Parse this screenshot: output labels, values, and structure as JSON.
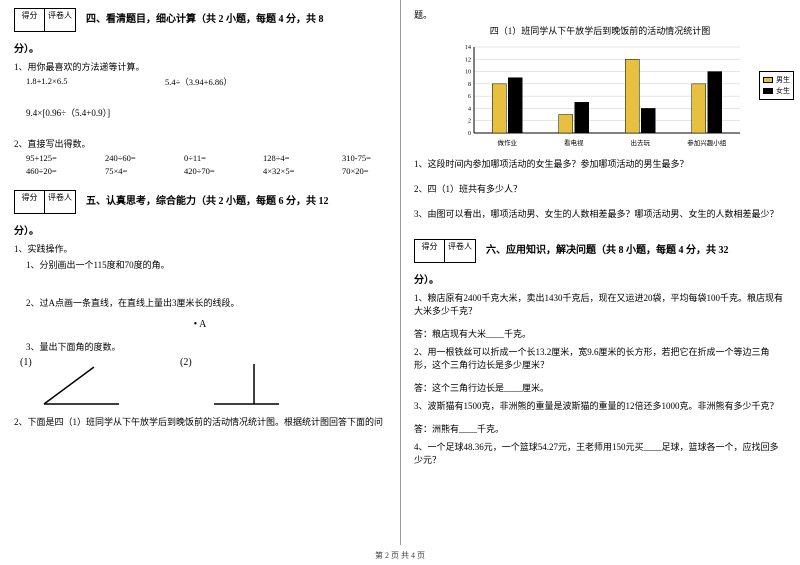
{
  "scorebox": {
    "score": "得分",
    "judge": "评卷人"
  },
  "sec4": {
    "title": "四、看清题目，细心计算（共 2 小题，每题 4 分，共 8",
    "cont": "分）。",
    "q1": "1、用你最喜欢的方法递等计算。",
    "c1a": "1.8+1.2×6.5",
    "c1b": "5.4÷（3.94+6.86）",
    "c1c": "9.4×[0.96÷（5.4+0.9）]",
    "q2": "2、直接写出得数。",
    "r1": [
      "95+125=",
      "240÷60=",
      "0÷11=",
      "128÷4=",
      "310-75="
    ],
    "r2": [
      "460÷20=",
      "75×4=",
      "420÷70=",
      "4×32×5=",
      "70×20="
    ]
  },
  "sec5": {
    "title": "五、认真思考，综合能力（共 2 小题，每题 6 分，共 12",
    "cont": "分）。",
    "q1": "1、实践操作。",
    "s1": "1、分别画出一个115度和70度的角。",
    "s2": "2、过A点画一条直线，在直线上量出3厘米长的线段。",
    "pointA": "• A",
    "s3": "3、量出下面角的度数。",
    "a1": "(1)",
    "a2": "(2)",
    "q2": "2、下面是四（1）班同学从下午放学后到晚饭前的活动情况统计图。根据统计图回答下面的问"
  },
  "right": {
    "top": "题。",
    "chartTitle": "四（1）班同学从下午放学后到晚饭前的活动情况统计图",
    "legend": {
      "boy": "男生",
      "girl": "女生"
    },
    "xlabels": [
      "做作业",
      "看电视",
      "出去玩",
      "参加兴趣小组"
    ],
    "ymax": 14,
    "bars": [
      {
        "boy": 8,
        "girl": 9,
        "boyColor": "#e8c040",
        "girlColor": "#000000"
      },
      {
        "boy": 3,
        "girl": 5,
        "boyColor": "#e8c040",
        "girlColor": "#000000"
      },
      {
        "boy": 12,
        "girl": 4,
        "boyColor": "#e8c040",
        "girlColor": "#000000"
      },
      {
        "boy": 8,
        "girl": 10,
        "boyColor": "#e8c040",
        "girlColor": "#000000"
      }
    ],
    "q1": "1、这段时间内参加哪项活动的女生最多？参加哪项活动的男生最多？",
    "q2": "2、四（1）班共有多少人？",
    "q3": "3、由图可以看出，哪项活动男、女生的人数相差最多？哪项活动男、女生的人数相差最少？"
  },
  "sec6": {
    "title": "六、应用知识，解决问题（共 8 小题，每题 4 分，共 32",
    "cont": "分）。",
    "q1": "1、粮店原有2400千克大米，卖出1430千克后，现在又运进20袋，平均每袋100千克。粮店现有大米多少千克？",
    "a1": "答：粮店现有大米____千克。",
    "q2": "2、用一根铁丝可以折成一个长13.2厘米，宽9.6厘米的长方形，若把它在折成一个等边三角形，这个三角行边长是多少厘米？",
    "a2": "答：这个三角行边长是____厘米。",
    "q3": "3、波斯猫有1500克，非洲熊的重量是波斯猫的重量的12倍还多1000克。非洲熊有多少千克？",
    "a3": "答：洲熊有____千克。",
    "q4": "4、一个足球48.36元，一个篮球54.27元，王老师用150元买____足球，篮球各一个，应找回多少元？"
  },
  "footer": "第 2 页 共 4 页"
}
